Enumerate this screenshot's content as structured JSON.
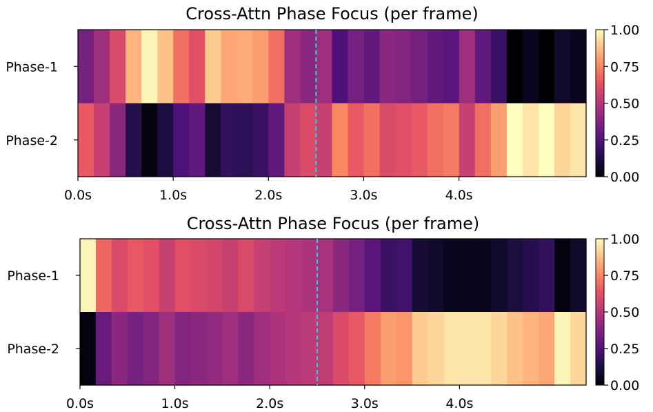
{
  "chart_data": [
    {
      "type": "heatmap",
      "title": "Cross-Attn Phase Focus (per frame)",
      "rows": [
        "Phase-1",
        "Phase-2"
      ],
      "x_ticks": [
        0,
        1,
        2,
        3,
        4
      ],
      "x_tick_labels": [
        "0.0s",
        "1.0s",
        "2.0s",
        "3.0s",
        "4.0s"
      ],
      "frame_step_s": 0.1667,
      "frames": 32,
      "marker_line_s": 2.5,
      "marker_color": "#27d3e6",
      "colormap": "magma",
      "vmin": 0.0,
      "vmax": 1.0,
      "colorbar_ticks": [
        "0.00",
        "0.25",
        "0.50",
        "0.75",
        "1.00"
      ],
      "values": [
        [
          0.35,
          0.45,
          0.6,
          0.85,
          0.98,
          0.88,
          0.7,
          0.62,
          0.9,
          0.82,
          0.83,
          0.8,
          0.7,
          0.45,
          0.4,
          0.45,
          0.25,
          0.35,
          0.3,
          0.4,
          0.38,
          0.35,
          0.3,
          0.28,
          0.45,
          0.3,
          0.2,
          0.0,
          0.05,
          0.0,
          0.08,
          0.05
        ],
        [
          0.65,
          0.55,
          0.4,
          0.15,
          0.02,
          0.12,
          0.25,
          0.3,
          0.1,
          0.18,
          0.17,
          0.2,
          0.3,
          0.55,
          0.6,
          0.55,
          0.75,
          0.65,
          0.7,
          0.6,
          0.62,
          0.65,
          0.7,
          0.72,
          0.55,
          0.7,
          0.8,
          1.0,
          0.95,
          1.0,
          0.92,
          0.95
        ]
      ]
    },
    {
      "type": "heatmap",
      "title": "Cross-Attn Phase Focus (per frame)",
      "rows": [
        "Phase-1",
        "Phase-2"
      ],
      "x_ticks": [
        0,
        1,
        2,
        3,
        4
      ],
      "x_tick_labels": [
        "0.0s",
        "1.0s",
        "2.0s",
        "3.0s",
        "4.0s"
      ],
      "frame_step_s": 0.1667,
      "frames": 32,
      "marker_line_s": 2.5,
      "marker_color": "#27d3e6",
      "colormap": "magma",
      "vmin": 0.0,
      "vmax": 1.0,
      "colorbar_ticks": [
        "0.00",
        "0.25",
        "0.50",
        "0.75",
        "1.00"
      ],
      "values": [
        [
          0.98,
          0.68,
          0.6,
          0.65,
          0.62,
          0.55,
          0.62,
          0.6,
          0.58,
          0.55,
          0.6,
          0.55,
          0.52,
          0.5,
          0.48,
          0.47,
          0.4,
          0.35,
          0.28,
          0.2,
          0.22,
          0.1,
          0.08,
          0.05,
          0.05,
          0.05,
          0.08,
          0.12,
          0.15,
          0.18,
          0.02,
          0.08
        ],
        [
          0.02,
          0.32,
          0.4,
          0.35,
          0.38,
          0.45,
          0.38,
          0.4,
          0.42,
          0.45,
          0.4,
          0.45,
          0.48,
          0.5,
          0.52,
          0.53,
          0.6,
          0.65,
          0.72,
          0.8,
          0.78,
          0.9,
          0.92,
          0.95,
          0.95,
          0.95,
          0.92,
          0.88,
          0.85,
          0.82,
          0.98,
          0.92
        ]
      ]
    }
  ]
}
